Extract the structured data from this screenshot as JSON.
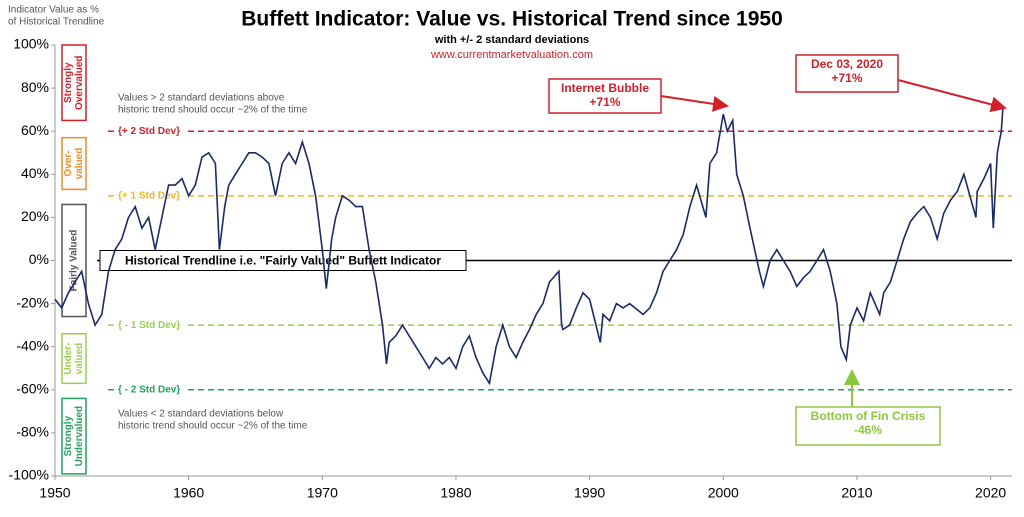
{
  "chart_data": {
    "type": "line",
    "title": "Buffett Indicator: Value vs. Historical Trend since 1950",
    "subtitle": "with +/- 2 standard deviations",
    "source": "www.currentmarketvaluation.com",
    "y_axis_label": [
      "Indicator Value as %",
      "of Historical Trendline"
    ],
    "xlim": [
      1950,
      2021.6
    ],
    "xticks": [
      1950,
      1960,
      1970,
      1980,
      1990,
      2000,
      2010,
      2020
    ],
    "ylim": [
      -100,
      100
    ],
    "yticks": [
      {
        "value": -100,
        "label": "-100%"
      },
      {
        "value": -80,
        "label": "-80%"
      },
      {
        "value": -60,
        "label": "-60%"
      },
      {
        "value": -40,
        "label": "-40%"
      },
      {
        "value": -20,
        "label": "-20%"
      },
      {
        "value": 0,
        "label": "0%"
      },
      {
        "value": 20,
        "label": "20%"
      },
      {
        "value": 40,
        "label": "40%"
      },
      {
        "value": 60,
        "label": "60%"
      },
      {
        "value": 80,
        "label": "80%"
      },
      {
        "value": 100,
        "label": "100%"
      }
    ],
    "color": "#1b2a66",
    "x": [
      1950,
      1950.5,
      1951,
      1951.5,
      1952,
      1952.5,
      1953,
      1953.5,
      1954,
      1954.5,
      1955,
      1955.5,
      1956,
      1956.5,
      1957,
      1957.5,
      1958,
      1958.5,
      1959,
      1959.5,
      1960,
      1960.5,
      1961,
      1961.5,
      1962,
      1962.3,
      1962.7,
      1963,
      1963.5,
      1964,
      1964.5,
      1965,
      1965.5,
      1966,
      1966.5,
      1967,
      1967.5,
      1968,
      1968.5,
      1969,
      1969.5,
      1970,
      1970.3,
      1970.7,
      1971,
      1971.5,
      1972,
      1972.5,
      1973,
      1973.5,
      1974,
      1974.5,
      1974.8,
      1975,
      1975.5,
      1976,
      1976.5,
      1977,
      1977.5,
      1978,
      1978.5,
      1979,
      1979.5,
      1980,
      1980.5,
      1981,
      1981.5,
      1982,
      1982.5,
      1983,
      1983.5,
      1984,
      1984.5,
      1985,
      1985.5,
      1986,
      1986.5,
      1987,
      1987.7,
      1987.9,
      1988,
      1988.5,
      1989,
      1989.5,
      1990,
      1990.8,
      1991,
      1991.5,
      1992,
      1992.5,
      1993,
      1994,
      1994.5,
      1995,
      1995.5,
      1996,
      1996.5,
      1997,
      1997.5,
      1998,
      1998.7,
      1999,
      1999.5,
      2000,
      2000.3,
      2000.7,
      2001,
      2001.5,
      2002,
      2002.7,
      2003,
      2003.5,
      2004,
      2004.5,
      2005,
      2005.5,
      2006,
      2006.5,
      2007,
      2007.5,
      2008,
      2008.5,
      2008.8,
      2009.2,
      2009.5,
      2010,
      2010.5,
      2011,
      2011.7,
      2012,
      2012.5,
      2013,
      2013.5,
      2014,
      2014.5,
      2015,
      2015.5,
      2016,
      2016.5,
      2017,
      2017.5,
      2018,
      2018.9,
      2019,
      2019.5,
      2020,
      2020.2,
      2020.5,
      2020.8,
      2020.92
    ],
    "values": [
      -18,
      -22,
      -15,
      -10,
      -5,
      -20,
      -30,
      -25,
      -5,
      5,
      10,
      20,
      25,
      15,
      20,
      5,
      20,
      35,
      35,
      38,
      30,
      35,
      48,
      50,
      45,
      5,
      25,
      35,
      40,
      45,
      50,
      50,
      48,
      45,
      30,
      45,
      50,
      45,
      55,
      45,
      30,
      5,
      -13,
      10,
      20,
      30,
      28,
      25,
      25,
      5,
      -10,
      -30,
      -48,
      -38,
      -35,
      -30,
      -35,
      -40,
      -45,
      -50,
      -45,
      -48,
      -45,
      -50,
      -40,
      -35,
      -45,
      -52,
      -57,
      -40,
      -30,
      -40,
      -45,
      -38,
      -32,
      -25,
      -20,
      -10,
      -5,
      -30,
      -32,
      -30,
      -22,
      -15,
      -18,
      -38,
      -25,
      -28,
      -20,
      -22,
      -20,
      -25,
      -22,
      -15,
      -5,
      0,
      5,
      12,
      25,
      35,
      20,
      45,
      50,
      68,
      60,
      65,
      40,
      30,
      15,
      -5,
      -12,
      0,
      5,
      0,
      -5,
      -12,
      -8,
      -5,
      0,
      5,
      -5,
      -20,
      -40,
      -46,
      -30,
      -22,
      -28,
      -15,
      -25,
      -15,
      -10,
      0,
      10,
      18,
      22,
      25,
      20,
      10,
      22,
      28,
      32,
      40,
      20,
      32,
      38,
      45,
      15,
      50,
      60,
      71
    ],
    "reference_lines": [
      {
        "value": 60,
        "label": "{+ 2 Std Dev}",
        "color": "#d0202a"
      },
      {
        "value": 30,
        "label": "{+ 1 Std Dev}",
        "color": "#f2b61b"
      },
      {
        "value": 0,
        "label": "Historical Trendline i.e. \"Fairly Valued\" Buffett Indicator",
        "color": "#000000"
      },
      {
        "value": -30,
        "label": "{ - 1 Std Dev}",
        "color": "#9bcf4f"
      },
      {
        "value": -60,
        "label": "{ - 2 Std Dev}",
        "color": "#22a25a"
      }
    ],
    "zones": [
      {
        "label": [
          "Strongly",
          "Overvalued"
        ],
        "color": "#d0202a",
        "from": 65,
        "to": 100
      },
      {
        "label": [
          "Over-",
          "valued"
        ],
        "color": "#f08a24",
        "from": 33,
        "to": 57
      },
      {
        "label": [
          "Fairly Valued"
        ],
        "color": "#555555",
        "from": -26,
        "to": 26
      },
      {
        "label": [
          "Under-",
          "valued"
        ],
        "color": "#9bcf4f",
        "from": -57,
        "to": -34
      },
      {
        "label": [
          "Strongly",
          "Undervalued"
        ],
        "color": "#22a25a",
        "from": -99,
        "to": -64
      }
    ],
    "notes": [
      [
        "Values > 2 standard deviations above",
        "historic trend should occur ~2% of the time"
      ],
      [
        "Values < 2 standard deviations below",
        "historic trend should occur ~2% of the time"
      ]
    ],
    "annotations": [
      {
        "text": [
          "Internet Bubble",
          "+71%"
        ],
        "color": "#d0202a"
      },
      {
        "text": [
          "Dec 03, 2020",
          "+71%"
        ],
        "color": "#d0202a"
      },
      {
        "text": [
          "Bottom of Fin Crisis",
          "-46%"
        ],
        "color": "#8dc63f"
      }
    ]
  }
}
